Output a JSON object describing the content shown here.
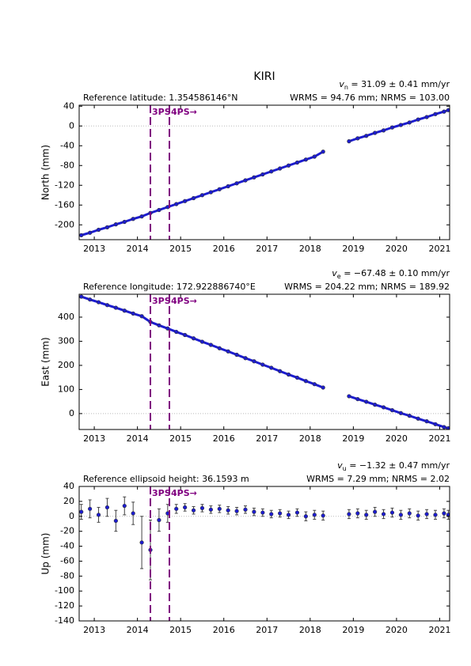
{
  "chart_data": [
    {
      "type": "scatter",
      "title": "KIRI",
      "subtitle": "Reference latitude: 1.354586146°N",
      "velocity_symbol": "v",
      "velocity_subscript": "n",
      "velocity_text": " = 31.09 ± 0.41 mm/yr",
      "stats": "WRMS = 94.76 mm; NRMS = 103.00",
      "ylabel": "North (mm)",
      "connect": true,
      "color": "#1c1cd0",
      "x": [
        2012.7,
        2012.9,
        2013.1,
        2013.3,
        2013.5,
        2013.7,
        2013.9,
        2014.1,
        2014.3,
        2014.5,
        2014.7,
        2014.9,
        2015.1,
        2015.3,
        2015.5,
        2015.7,
        2015.9,
        2016.1,
        2016.3,
        2016.5,
        2016.7,
        2016.9,
        2017.1,
        2017.3,
        2017.5,
        2017.7,
        2017.9,
        2018.1,
        2018.3,
        2018.6,
        2018.9,
        2019.1,
        2019.3,
        2019.5,
        2019.7,
        2019.9,
        2020.1,
        2020.3,
        2020.5,
        2020.7,
        2020.9,
        2021.1,
        2021.2
      ],
      "values": [
        -221,
        -216,
        -210,
        -205,
        -199,
        -194,
        -188,
        -183,
        -176,
        -170,
        -164,
        -158,
        -152,
        -146,
        -140,
        -134,
        -128,
        -122,
        -116,
        -110,
        -104,
        -98,
        -92,
        -86,
        -80,
        -74,
        -68,
        -62,
        -52,
        null,
        -31,
        -25,
        -20,
        -14,
        -9,
        -3,
        2,
        7,
        13,
        18,
        24,
        29,
        32
      ],
      "xlim": [
        2012.65,
        2021.23
      ],
      "xticks": [
        2013,
        2014,
        2015,
        2016,
        2017,
        2018,
        2019,
        2020,
        2021
      ],
      "ylim": [
        -230,
        42
      ],
      "yticks": [
        -200,
        -160,
        -120,
        -80,
        -40,
        0,
        40
      ],
      "events": [
        {
          "x": 2014.3,
          "label": "3PS"
        },
        {
          "x": 2014.74,
          "label": "4PS→"
        }
      ],
      "event_color": "#800080"
    },
    {
      "type": "scatter",
      "subtitle": "Reference longitude: 172.922886740°E",
      "velocity_symbol": "v",
      "velocity_subscript": "e",
      "velocity_text": " = −67.48 ± 0.10 mm/yr",
      "stats": "WRMS = 204.22 mm; NRMS = 189.92",
      "ylabel": "East (mm)",
      "connect": true,
      "color": "#1c1cd0",
      "x": [
        2012.7,
        2012.9,
        2013.1,
        2013.3,
        2013.5,
        2013.7,
        2013.9,
        2014.1,
        2014.3,
        2014.5,
        2014.7,
        2014.9,
        2015.1,
        2015.3,
        2015.5,
        2015.7,
        2015.9,
        2016.1,
        2016.3,
        2016.5,
        2016.7,
        2016.9,
        2017.1,
        2017.3,
        2017.5,
        2017.7,
        2017.9,
        2018.1,
        2018.3,
        2018.6,
        2018.9,
        2019.1,
        2019.3,
        2019.5,
        2019.7,
        2019.9,
        2020.1,
        2020.3,
        2020.5,
        2020.7,
        2020.9,
        2021.1,
        2021.2
      ],
      "values": [
        485,
        473,
        462,
        450,
        439,
        427,
        415,
        404,
        380,
        366,
        353,
        339,
        326,
        312,
        298,
        285,
        271,
        258,
        244,
        230,
        217,
        203,
        190,
        176,
        162,
        149,
        135,
        122,
        108,
        null,
        72,
        60,
        49,
        37,
        26,
        14,
        2,
        -9,
        -21,
        -32,
        -44,
        -56,
        -61
      ],
      "xlim": [
        2012.65,
        2021.23
      ],
      "xticks": [
        2013,
        2014,
        2015,
        2016,
        2017,
        2018,
        2019,
        2020,
        2021
      ],
      "ylim": [
        -66,
        495
      ],
      "yticks": [
        0,
        100,
        200,
        300,
        400
      ],
      "events": [
        {
          "x": 2014.3,
          "label": "3PS"
        },
        {
          "x": 2014.74,
          "label": "4PS→"
        }
      ],
      "event_color": "#800080"
    },
    {
      "type": "scatter",
      "subtitle": "Reference ellipsoid height: 36.1593 m",
      "velocity_symbol": "v",
      "velocity_subscript": "u",
      "velocity_text": " = −1.32 ± 0.47 mm/yr",
      "stats": "WRMS = 7.29 mm; NRMS = 2.02",
      "ylabel": "Up (mm)",
      "connect": false,
      "color": "#1c1cd0",
      "x": [
        2012.7,
        2012.9,
        2013.1,
        2013.3,
        2013.5,
        2013.7,
        2013.9,
        2014.1,
        2014.3,
        2014.5,
        2014.7,
        2014.9,
        2015.1,
        2015.3,
        2015.5,
        2015.7,
        2015.9,
        2016.1,
        2016.3,
        2016.5,
        2016.7,
        2016.9,
        2017.1,
        2017.3,
        2017.5,
        2017.7,
        2017.9,
        2018.1,
        2018.3,
        2018.9,
        2019.1,
        2019.3,
        2019.5,
        2019.7,
        2019.9,
        2020.1,
        2020.3,
        2020.5,
        2020.7,
        2020.9,
        2021.1,
        2021.2
      ],
      "values": [
        6,
        10,
        2,
        12,
        -6,
        14,
        4,
        -35,
        -45,
        -5,
        4,
        10,
        12,
        8,
        11,
        9,
        10,
        8,
        7,
        9,
        6,
        5,
        3,
        4,
        2,
        5,
        0,
        2,
        1,
        3,
        4,
        2,
        6,
        3,
        5,
        2,
        4,
        1,
        3,
        2,
        4,
        2
      ],
      "errors": [
        10,
        12,
        10,
        12,
        14,
        12,
        15,
        35,
        40,
        15,
        12,
        6,
        5,
        5,
        5,
        5,
        5,
        5,
        5,
        5,
        5,
        5,
        5,
        5,
        5,
        5,
        6,
        6,
        6,
        6,
        6,
        6,
        6,
        6,
        6,
        6,
        6,
        6,
        6,
        6,
        6,
        6
      ],
      "xlim": [
        2012.65,
        2021.23
      ],
      "xticks": [
        2013,
        2014,
        2015,
        2016,
        2017,
        2018,
        2019,
        2020,
        2021
      ],
      "ylim": [
        -140,
        40
      ],
      "yticks": [
        -140,
        -120,
        -100,
        -80,
        -60,
        -40,
        -20,
        0,
        20,
        40
      ],
      "events": [
        {
          "x": 2014.3,
          "label": "3PS"
        },
        {
          "x": 2014.74,
          "label": "4PS→"
        }
      ],
      "event_color": "#800080"
    }
  ]
}
